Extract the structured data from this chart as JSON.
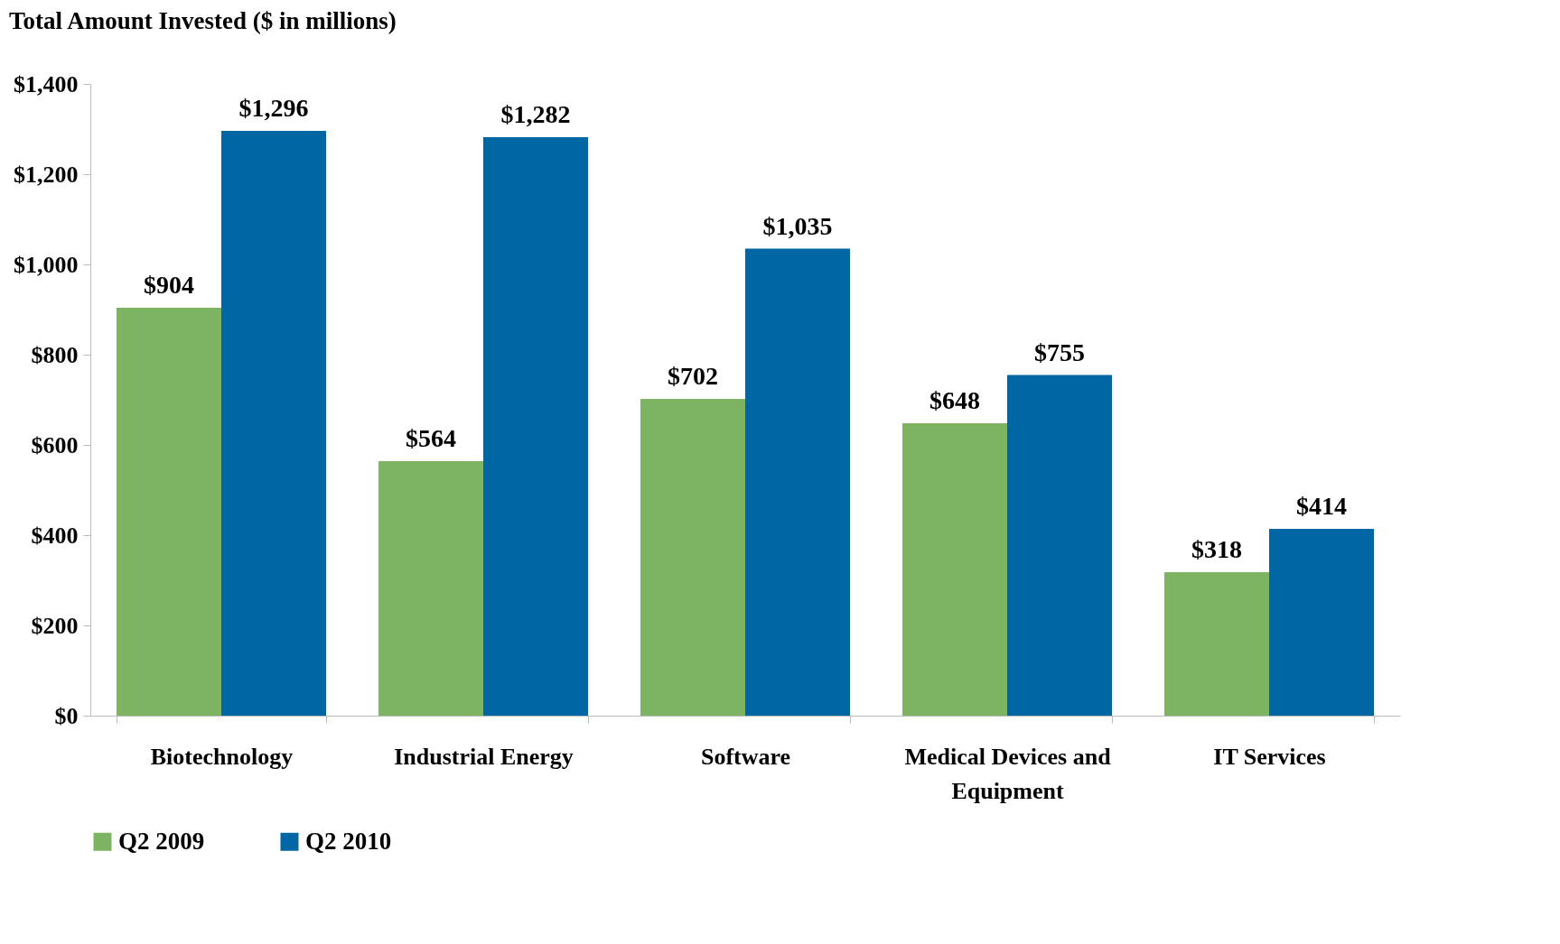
{
  "chart_data": {
    "type": "bar",
    "title": "Total Amount Invested ($ in millions)",
    "categories": [
      "Biotechnology",
      "Industrial Energy",
      "Software",
      "Medical Devices and Equipment",
      "IT Services"
    ],
    "series": [
      {
        "name": "Q2 2009",
        "color": "#7cb462",
        "values": [
          904,
          564,
          702,
          648,
          318
        ],
        "value_labels": [
          "$904",
          "$564",
          "$702",
          "$648",
          "$318"
        ]
      },
      {
        "name": "Q2 2010",
        "color": "#0066a4",
        "values": [
          1296,
          1282,
          1035,
          755,
          414
        ],
        "value_labels": [
          "$1,296",
          "$1,282",
          "$1,035",
          "$755",
          "$414"
        ]
      }
    ],
    "ylim": [
      0,
      1400
    ],
    "yticks": [
      {
        "value": 0,
        "label": "$0"
      },
      {
        "value": 200,
        "label": "$200"
      },
      {
        "value": 400,
        "label": "$400"
      },
      {
        "value": 600,
        "label": "$600"
      },
      {
        "value": 800,
        "label": "$800"
      },
      {
        "value": 1000,
        "label": "$1,000"
      },
      {
        "value": 1200,
        "label": "$1,200"
      },
      {
        "value": 1400,
        "label": "$1,400"
      }
    ],
    "grid": false,
    "legend": "bottom"
  }
}
